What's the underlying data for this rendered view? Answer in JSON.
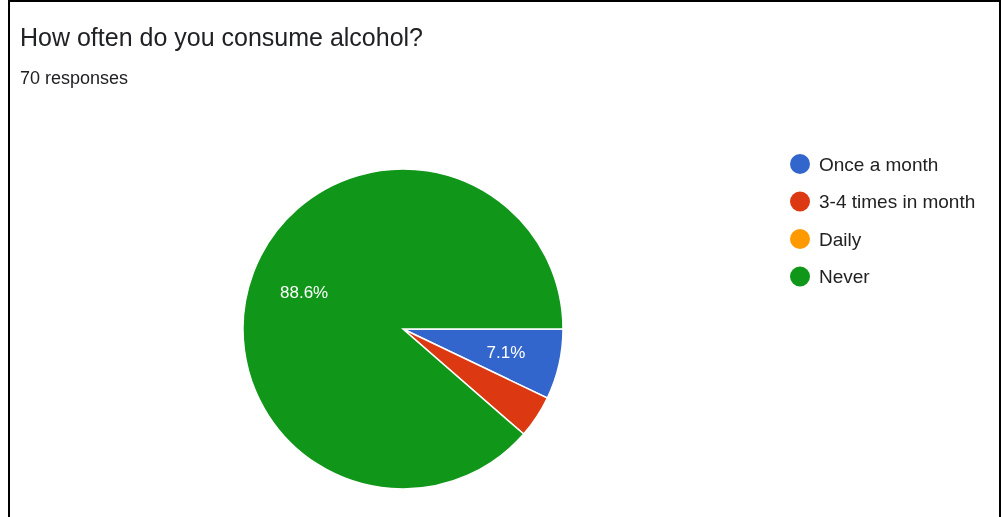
{
  "chart_data": {
    "type": "pie",
    "title": "How often do you consume alcohol?",
    "subtitle": "70 responses",
    "categories": [
      "Once a month",
      "3-4 times in month",
      "Daily",
      "Never"
    ],
    "values": [
      7.1,
      4.3,
      0,
      88.6
    ],
    "colors": [
      "#3366cc",
      "#dc3912",
      "#ff9900",
      "#109618"
    ],
    "value_labels": [
      "7.1%",
      null,
      null,
      "88.6%"
    ],
    "legend": "top right"
  }
}
